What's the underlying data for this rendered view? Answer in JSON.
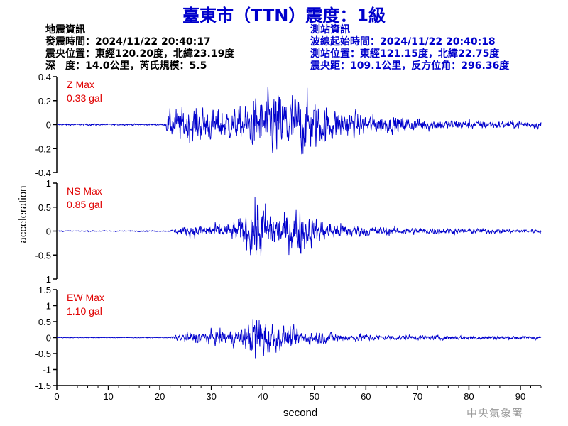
{
  "title": "臺東市（TTN）震度：1級",
  "info_left": {
    "heading": "地震資訊",
    "origin_time": "發震時間：2024/11/22 20:40:17",
    "epicenter": "震央位置：東經120.20度，北緯23.19度",
    "depth_magnitude": "深　度：14.0公里，芮氏規模：5.5"
  },
  "info_right": {
    "heading": "測站資訊",
    "wave_start": "波線起始時間：2024/11/22 20:40:18",
    "station_location": "測站位置：東經121.15度，北緯22.75度",
    "distance": "震央距：109.1公里，反方位角：296.36度"
  },
  "watermark": "中央氣象署",
  "colors": {
    "title": "#0000cc",
    "trace": "#0000cc",
    "max_label": "#e00000",
    "axis": "#000000"
  },
  "chart_data": {
    "type": "line",
    "xlabel": "second",
    "ylabel": "acceleration",
    "xlim": [
      0,
      94
    ],
    "x_ticks": [
      0,
      10,
      20,
      30,
      40,
      50,
      60,
      70,
      80,
      90
    ],
    "panels": [
      {
        "component": "Z",
        "max_label": "Z Max",
        "max_value": "0.33 gal",
        "ylim": [
          -0.4,
          0.4
        ],
        "y_ticks": [
          -0.4,
          -0.2,
          0,
          0.2,
          0.4
        ],
        "y_tick_labels": [
          "-0.4",
          "-0.2",
          "0",
          "0.2",
          "0.4"
        ],
        "envelope": [
          [
            0,
            0.007
          ],
          [
            21,
            0.007
          ],
          [
            21.5,
            0.1
          ],
          [
            23,
            0.14
          ],
          [
            26,
            0.15
          ],
          [
            30,
            0.15
          ],
          [
            35,
            0.13
          ],
          [
            38,
            0.22
          ],
          [
            41,
            0.28
          ],
          [
            43,
            0.3
          ],
          [
            46,
            0.29
          ],
          [
            48,
            0.28
          ],
          [
            50,
            0.22
          ],
          [
            53,
            0.16
          ],
          [
            57,
            0.12
          ],
          [
            62,
            0.08
          ],
          [
            70,
            0.06
          ],
          [
            80,
            0.04
          ],
          [
            90,
            0.035
          ],
          [
            94,
            0.03
          ]
        ]
      },
      {
        "component": "NS",
        "max_label": "NS Max",
        "max_value": "0.85 gal",
        "ylim": [
          -1,
          1
        ],
        "y_ticks": [
          -1,
          -0.5,
          0,
          0.5,
          1
        ],
        "y_tick_labels": [
          "-1",
          "-0.5",
          "0",
          "0.5",
          "1"
        ],
        "envelope": [
          [
            0,
            0.012
          ],
          [
            22,
            0.012
          ],
          [
            22.5,
            0.04
          ],
          [
            25,
            0.12
          ],
          [
            30,
            0.16
          ],
          [
            34,
            0.18
          ],
          [
            37,
            0.4
          ],
          [
            39,
            0.8
          ],
          [
            41,
            0.55
          ],
          [
            44,
            0.35
          ],
          [
            47,
            0.55
          ],
          [
            49,
            0.35
          ],
          [
            52,
            0.22
          ],
          [
            57,
            0.15
          ],
          [
            63,
            0.1
          ],
          [
            70,
            0.08
          ],
          [
            80,
            0.06
          ],
          [
            90,
            0.05
          ],
          [
            94,
            0.05
          ]
        ]
      },
      {
        "component": "EW",
        "max_label": "EW Max",
        "max_value": "1.10 gal",
        "ylim": [
          -1.5,
          1.5
        ],
        "y_ticks": [
          -1.5,
          -1,
          -0.5,
          0,
          0.5,
          1,
          1.5
        ],
        "y_tick_labels": [
          "-1.5",
          "-1",
          "-0.5",
          "0",
          "0.5",
          "1",
          "1.5"
        ],
        "envelope": [
          [
            0,
            0.012
          ],
          [
            22,
            0.012
          ],
          [
            22.5,
            0.06
          ],
          [
            25,
            0.18
          ],
          [
            30,
            0.22
          ],
          [
            35,
            0.28
          ],
          [
            37,
            0.4
          ],
          [
            39,
            1.05
          ],
          [
            40,
            0.7
          ],
          [
            43,
            0.4
          ],
          [
            46,
            0.3
          ],
          [
            48,
            0.25
          ],
          [
            52,
            0.2
          ],
          [
            57,
            0.14
          ],
          [
            63,
            0.1
          ],
          [
            70,
            0.08
          ],
          [
            80,
            0.07
          ],
          [
            90,
            0.06
          ],
          [
            94,
            0.06
          ]
        ]
      }
    ]
  }
}
